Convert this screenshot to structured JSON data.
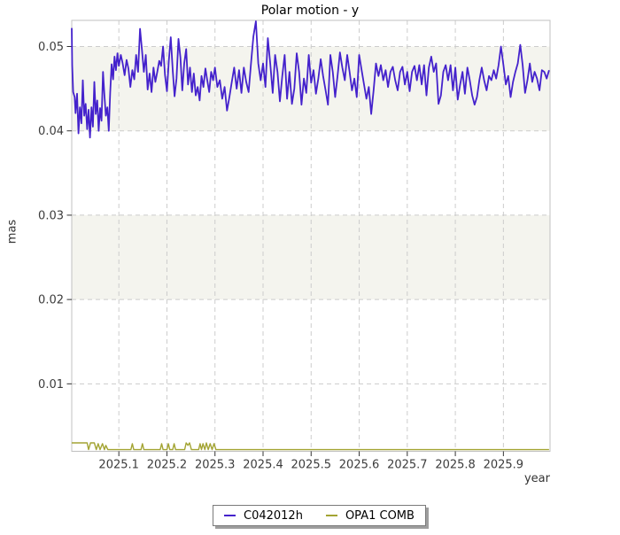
{
  "title": "Polar motion - y",
  "legend": {
    "items": [
      {
        "label": "C042012h",
        "color": "#4422cc"
      },
      {
        "label": "OPA1 COMB",
        "color": "#a3a433"
      }
    ]
  },
  "chart_data": {
    "type": "line",
    "title": "Polar motion - y",
    "xlabel": "year",
    "ylabel": "mas",
    "xlim": [
      2025.002,
      2025.997
    ],
    "ylim": [
      0.002,
      0.0531
    ],
    "grid": true,
    "legend_position": "bottom-center",
    "x_ticks": [
      {
        "v": 2025.1,
        "label": "2025.1"
      },
      {
        "v": 2025.2,
        "label": "2025.2"
      },
      {
        "v": 2025.3,
        "label": "2025.3"
      },
      {
        "v": 2025.4,
        "label": "2025.4"
      },
      {
        "v": 2025.5,
        "label": "2025.5"
      },
      {
        "v": 2025.6,
        "label": "2025.6"
      },
      {
        "v": 2025.7,
        "label": "2025.7"
      },
      {
        "v": 2025.8,
        "label": "2025.8"
      },
      {
        "v": 2025.9,
        "label": "2025.9"
      }
    ],
    "y_ticks": [
      {
        "v": 0.05,
        "label": "0.05"
      },
      {
        "v": 0.04,
        "label": "0.04"
      },
      {
        "v": 0.03,
        "label": "0.03"
      },
      {
        "v": 0.02,
        "label": "0.02"
      },
      {
        "v": 0.01,
        "label": "0.01"
      }
    ],
    "bands": [
      [
        0.05,
        0.04
      ],
      [
        0.03,
        0.02
      ]
    ],
    "colors": {
      "band": "#f4f4ee",
      "grid": "#cccccc",
      "border": "#c0c0c0",
      "tick": "#333333",
      "series_c04": "#4422cc",
      "series_opa": "#a3a433"
    },
    "series": [
      {
        "name": "C042012h",
        "color": "#4422cc",
        "width": 1.8,
        "points": [
          [
            2025.002,
            0.0522
          ],
          [
            2025.003,
            0.0478
          ],
          [
            2025.005,
            0.0446
          ],
          [
            2025.008,
            0.044
          ],
          [
            2025.01,
            0.0421
          ],
          [
            2025.013,
            0.0444
          ],
          [
            2025.016,
            0.0397
          ],
          [
            2025.019,
            0.0428
          ],
          [
            2025.022,
            0.0409
          ],
          [
            2025.025,
            0.046
          ],
          [
            2025.028,
            0.0418
          ],
          [
            2025.031,
            0.0432
          ],
          [
            2025.034,
            0.0402
          ],
          [
            2025.037,
            0.0425
          ],
          [
            2025.04,
            0.0392
          ],
          [
            2025.043,
            0.0428
          ],
          [
            2025.046,
            0.0405
          ],
          [
            2025.049,
            0.0458
          ],
          [
            2025.052,
            0.042
          ],
          [
            2025.055,
            0.0436
          ],
          [
            2025.058,
            0.04
          ],
          [
            2025.061,
            0.0427
          ],
          [
            2025.064,
            0.0412
          ],
          [
            2025.067,
            0.047
          ],
          [
            2025.07,
            0.0442
          ],
          [
            2025.073,
            0.0418
          ],
          [
            2025.076,
            0.0428
          ],
          [
            2025.079,
            0.04
          ],
          [
            2025.082,
            0.0445
          ],
          [
            2025.085,
            0.0479
          ],
          [
            2025.088,
            0.0461
          ],
          [
            2025.091,
            0.0488
          ],
          [
            2025.094,
            0.0472
          ],
          [
            2025.097,
            0.0492
          ],
          [
            2025.1,
            0.0477
          ],
          [
            2025.104,
            0.049
          ],
          [
            2025.108,
            0.048
          ],
          [
            2025.112,
            0.0466
          ],
          [
            2025.116,
            0.0484
          ],
          [
            2025.12,
            0.0474
          ],
          [
            2025.124,
            0.0452
          ],
          [
            2025.128,
            0.0472
          ],
          [
            2025.132,
            0.0461
          ],
          [
            2025.136,
            0.049
          ],
          [
            2025.14,
            0.047
          ],
          [
            2025.144,
            0.0521
          ],
          [
            2025.148,
            0.0497
          ],
          [
            2025.152,
            0.047
          ],
          [
            2025.156,
            0.049
          ],
          [
            2025.16,
            0.0449
          ],
          [
            2025.164,
            0.0468
          ],
          [
            2025.168,
            0.0446
          ],
          [
            2025.172,
            0.0475
          ],
          [
            2025.176,
            0.0458
          ],
          [
            2025.18,
            0.047
          ],
          [
            2025.184,
            0.0483
          ],
          [
            2025.188,
            0.0477
          ],
          [
            2025.192,
            0.05
          ],
          [
            2025.196,
            0.0466
          ],
          [
            2025.2,
            0.0447
          ],
          [
            2025.204,
            0.0483
          ],
          [
            2025.208,
            0.0511
          ],
          [
            2025.212,
            0.0472
          ],
          [
            2025.216,
            0.0441
          ],
          [
            2025.22,
            0.0462
          ],
          [
            2025.224,
            0.0509
          ],
          [
            2025.228,
            0.0487
          ],
          [
            2025.232,
            0.0448
          ],
          [
            2025.236,
            0.048
          ],
          [
            2025.24,
            0.0497
          ],
          [
            2025.244,
            0.0455
          ],
          [
            2025.248,
            0.0475
          ],
          [
            2025.252,
            0.0446
          ],
          [
            2025.256,
            0.0468
          ],
          [
            2025.26,
            0.0442
          ],
          [
            2025.264,
            0.0452
          ],
          [
            2025.268,
            0.0436
          ],
          [
            2025.272,
            0.0465
          ],
          [
            2025.276,
            0.0452
          ],
          [
            2025.28,
            0.0474
          ],
          [
            2025.284,
            0.046
          ],
          [
            2025.288,
            0.0446
          ],
          [
            2025.292,
            0.047
          ],
          [
            2025.296,
            0.046
          ],
          [
            2025.3,
            0.0475
          ],
          [
            2025.305,
            0.0452
          ],
          [
            2025.31,
            0.046
          ],
          [
            2025.315,
            0.0438
          ],
          [
            2025.32,
            0.0452
          ],
          [
            2025.325,
            0.0424
          ],
          [
            2025.33,
            0.044
          ],
          [
            2025.335,
            0.0458
          ],
          [
            2025.34,
            0.0475
          ],
          [
            2025.345,
            0.045
          ],
          [
            2025.35,
            0.0472
          ],
          [
            2025.355,
            0.0445
          ],
          [
            2025.36,
            0.0475
          ],
          [
            2025.365,
            0.0458
          ],
          [
            2025.37,
            0.0446
          ],
          [
            2025.375,
            0.048
          ],
          [
            2025.38,
            0.0512
          ],
          [
            2025.385,
            0.053
          ],
          [
            2025.39,
            0.048
          ],
          [
            2025.395,
            0.046
          ],
          [
            2025.4,
            0.048
          ],
          [
            2025.405,
            0.0452
          ],
          [
            2025.41,
            0.051
          ],
          [
            2025.415,
            0.048
          ],
          [
            2025.42,
            0.0445
          ],
          [
            2025.425,
            0.049
          ],
          [
            2025.43,
            0.047
          ],
          [
            2025.435,
            0.0435
          ],
          [
            2025.44,
            0.0465
          ],
          [
            2025.445,
            0.049
          ],
          [
            2025.45,
            0.0438
          ],
          [
            2025.455,
            0.047
          ],
          [
            2025.46,
            0.0432
          ],
          [
            2025.465,
            0.045
          ],
          [
            2025.47,
            0.0492
          ],
          [
            2025.475,
            0.047
          ],
          [
            2025.48,
            0.0431
          ],
          [
            2025.485,
            0.0462
          ],
          [
            2025.49,
            0.0445
          ],
          [
            2025.495,
            0.049
          ],
          [
            2025.5,
            0.0457
          ],
          [
            2025.505,
            0.0472
          ],
          [
            2025.51,
            0.0444
          ],
          [
            2025.515,
            0.0462
          ],
          [
            2025.52,
            0.0485
          ],
          [
            2025.525,
            0.0465
          ],
          [
            2025.53,
            0.0448
          ],
          [
            2025.535,
            0.0431
          ],
          [
            2025.54,
            0.049
          ],
          [
            2025.545,
            0.047
          ],
          [
            2025.55,
            0.044
          ],
          [
            2025.555,
            0.0465
          ],
          [
            2025.56,
            0.0493
          ],
          [
            2025.565,
            0.0475
          ],
          [
            2025.57,
            0.046
          ],
          [
            2025.575,
            0.049
          ],
          [
            2025.58,
            0.047
          ],
          [
            2025.585,
            0.0448
          ],
          [
            2025.59,
            0.0462
          ],
          [
            2025.595,
            0.044
          ],
          [
            2025.6,
            0.049
          ],
          [
            2025.605,
            0.0472
          ],
          [
            2025.61,
            0.0455
          ],
          [
            2025.615,
            0.0438
          ],
          [
            2025.62,
            0.0452
          ],
          [
            2025.625,
            0.042
          ],
          [
            2025.63,
            0.0448
          ],
          [
            2025.635,
            0.048
          ],
          [
            2025.64,
            0.0465
          ],
          [
            2025.645,
            0.0478
          ],
          [
            2025.65,
            0.046
          ],
          [
            2025.655,
            0.0472
          ],
          [
            2025.66,
            0.0452
          ],
          [
            2025.665,
            0.047
          ],
          [
            2025.67,
            0.0476
          ],
          [
            2025.675,
            0.046
          ],
          [
            2025.68,
            0.0448
          ],
          [
            2025.685,
            0.047
          ],
          [
            2025.69,
            0.0476
          ],
          [
            2025.695,
            0.0455
          ],
          [
            2025.7,
            0.047
          ],
          [
            2025.705,
            0.0447
          ],
          [
            2025.71,
            0.047
          ],
          [
            2025.715,
            0.0477
          ],
          [
            2025.72,
            0.046
          ],
          [
            2025.725,
            0.0478
          ],
          [
            2025.73,
            0.0455
          ],
          [
            2025.735,
            0.0478
          ],
          [
            2025.74,
            0.0442
          ],
          [
            2025.745,
            0.0475
          ],
          [
            2025.75,
            0.0488
          ],
          [
            2025.755,
            0.047
          ],
          [
            2025.76,
            0.048
          ],
          [
            2025.765,
            0.0432
          ],
          [
            2025.77,
            0.0442
          ],
          [
            2025.775,
            0.047
          ],
          [
            2025.78,
            0.0478
          ],
          [
            2025.785,
            0.046
          ],
          [
            2025.79,
            0.0478
          ],
          [
            2025.795,
            0.0448
          ],
          [
            2025.8,
            0.0475
          ],
          [
            2025.805,
            0.0437
          ],
          [
            2025.81,
            0.0455
          ],
          [
            2025.815,
            0.047
          ],
          [
            2025.82,
            0.0444
          ],
          [
            2025.825,
            0.0475
          ],
          [
            2025.83,
            0.046
          ],
          [
            2025.835,
            0.0442
          ],
          [
            2025.84,
            0.0431
          ],
          [
            2025.845,
            0.044
          ],
          [
            2025.85,
            0.046
          ],
          [
            2025.855,
            0.0475
          ],
          [
            2025.86,
            0.046
          ],
          [
            2025.865,
            0.0448
          ],
          [
            2025.87,
            0.0465
          ],
          [
            2025.875,
            0.046
          ],
          [
            2025.88,
            0.0472
          ],
          [
            2025.885,
            0.0462
          ],
          [
            2025.89,
            0.0478
          ],
          [
            2025.895,
            0.05
          ],
          [
            2025.9,
            0.0478
          ],
          [
            2025.905,
            0.0455
          ],
          [
            2025.91,
            0.0465
          ],
          [
            2025.915,
            0.044
          ],
          [
            2025.92,
            0.0458
          ],
          [
            2025.925,
            0.047
          ],
          [
            2025.93,
            0.048
          ],
          [
            2025.935,
            0.0502
          ],
          [
            2025.94,
            0.0478
          ],
          [
            2025.945,
            0.0445
          ],
          [
            2025.95,
            0.046
          ],
          [
            2025.955,
            0.048
          ],
          [
            2025.96,
            0.0458
          ],
          [
            2025.965,
            0.047
          ],
          [
            2025.97,
            0.0462
          ],
          [
            2025.975,
            0.0448
          ],
          [
            2025.98,
            0.0472
          ],
          [
            2025.985,
            0.047
          ],
          [
            2025.99,
            0.0462
          ],
          [
            2025.995,
            0.0472
          ]
        ]
      },
      {
        "name": "OPA1 COMB",
        "color": "#a3a433",
        "width": 1.4,
        "points": [
          [
            2025.002,
            0.003
          ],
          [
            2025.034,
            0.003
          ],
          [
            2025.037,
            0.0022
          ],
          [
            2025.041,
            0.003
          ],
          [
            2025.049,
            0.003
          ],
          [
            2025.053,
            0.0022
          ],
          [
            2025.057,
            0.0029
          ],
          [
            2025.061,
            0.0022
          ],
          [
            2025.066,
            0.0029
          ],
          [
            2025.07,
            0.0022
          ],
          [
            2025.073,
            0.0027
          ],
          [
            2025.077,
            0.0022
          ],
          [
            2025.125,
            0.0022
          ],
          [
            2025.128,
            0.0029
          ],
          [
            2025.131,
            0.0022
          ],
          [
            2025.146,
            0.0022
          ],
          [
            2025.149,
            0.0029
          ],
          [
            2025.152,
            0.0022
          ],
          [
            2025.186,
            0.0022
          ],
          [
            2025.189,
            0.0029
          ],
          [
            2025.192,
            0.0022
          ],
          [
            2025.2,
            0.0022
          ],
          [
            2025.203,
            0.0029
          ],
          [
            2025.206,
            0.0022
          ],
          [
            2025.212,
            0.0022
          ],
          [
            2025.215,
            0.0029
          ],
          [
            2025.218,
            0.0022
          ],
          [
            2025.237,
            0.0022
          ],
          [
            2025.24,
            0.003
          ],
          [
            2025.244,
            0.0027
          ],
          [
            2025.247,
            0.003
          ],
          [
            2025.251,
            0.0022
          ],
          [
            2025.266,
            0.0022
          ],
          [
            2025.269,
            0.0029
          ],
          [
            2025.272,
            0.0022
          ],
          [
            2025.275,
            0.0029
          ],
          [
            2025.279,
            0.0022
          ],
          [
            2025.282,
            0.003
          ],
          [
            2025.286,
            0.0022
          ],
          [
            2025.29,
            0.0029
          ],
          [
            2025.294,
            0.0022
          ],
          [
            2025.298,
            0.0029
          ],
          [
            2025.302,
            0.0022
          ],
          [
            2025.995,
            0.0022
          ]
        ]
      }
    ]
  }
}
